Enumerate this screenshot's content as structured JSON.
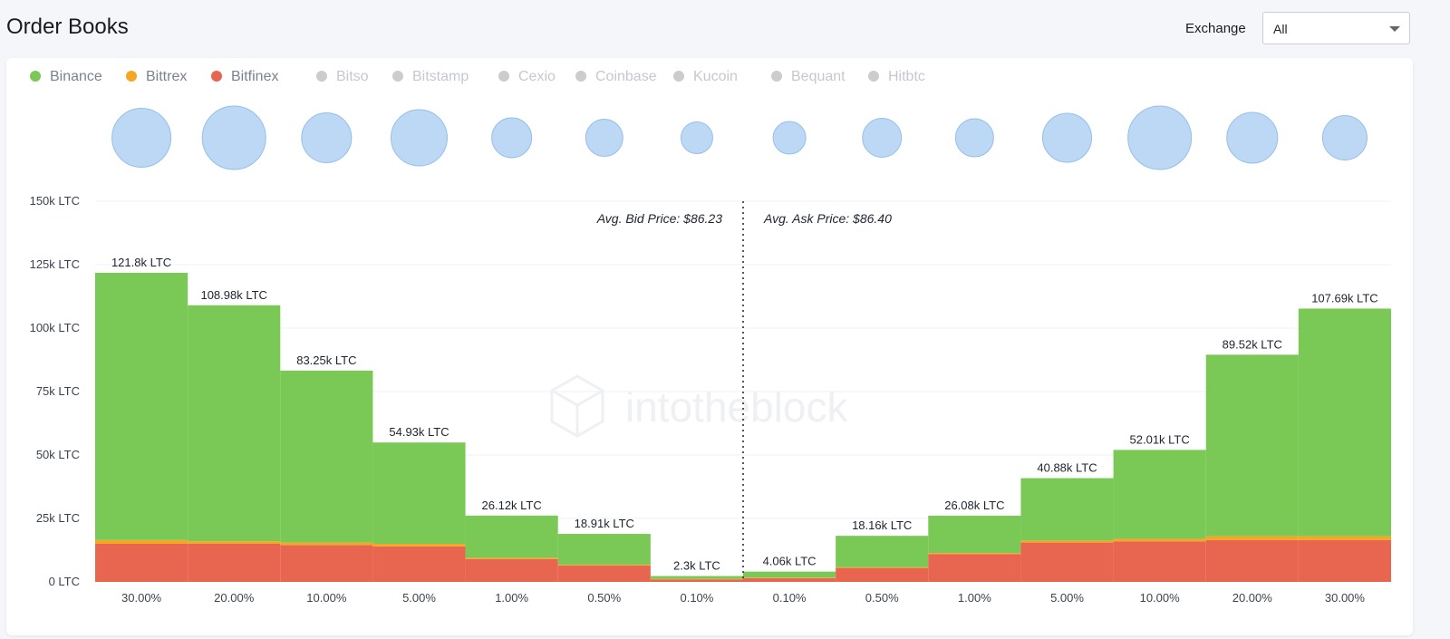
{
  "header": {
    "title": "Order Books",
    "exchange_label": "Exchange",
    "exchange_value": "All"
  },
  "legend": [
    {
      "name": "Binance",
      "color": "#7ac855",
      "active": true
    },
    {
      "name": "Bittrex",
      "color": "#f5a623",
      "active": true
    },
    {
      "name": "Bitfinex",
      "color": "#e8654f",
      "active": true
    },
    {
      "name": "Bitso",
      "color": "#cccccc",
      "active": false
    },
    {
      "name": "Bitstamp",
      "color": "#cccccc",
      "active": false
    },
    {
      "name": "Cexio",
      "color": "#cccccc",
      "active": false
    },
    {
      "name": "Coinbase",
      "color": "#cccccc",
      "active": false
    },
    {
      "name": "Kucoin",
      "color": "#cccccc",
      "active": false
    },
    {
      "name": "Bequant",
      "color": "#cccccc",
      "active": false
    },
    {
      "name": "Hitbtc",
      "color": "#cccccc",
      "active": false
    }
  ],
  "chart_data": {
    "type": "bar",
    "stacked": true,
    "categories": [
      "30.00%",
      "20.00%",
      "10.00%",
      "5.00%",
      "1.00%",
      "0.50%",
      "0.10%",
      "0.10%",
      "0.50%",
      "1.00%",
      "5.00%",
      "10.00%",
      "20.00%",
      "30.00%"
    ],
    "side": [
      "bid",
      "bid",
      "bid",
      "bid",
      "bid",
      "bid",
      "bid",
      "ask",
      "ask",
      "ask",
      "ask",
      "ask",
      "ask",
      "ask"
    ],
    "series": [
      {
        "name": "Bitfinex",
        "color": "#e8654f",
        "values": [
          15,
          15,
          14.5,
          14,
          9,
          6.5,
          1,
          1.5,
          5.5,
          11,
          15.5,
          16,
          16.5,
          16.5
        ]
      },
      {
        "name": "Bittrex",
        "color": "#f5a623",
        "values": [
          1.5,
          1,
          1,
          1,
          0.5,
          0.3,
          0.2,
          0.2,
          0.3,
          0.4,
          0.8,
          1,
          1.5,
          1.5
        ]
      },
      {
        "name": "Binance",
        "color": "#7ac855",
        "values": [
          105.3,
          92.98,
          67.75,
          39.93,
          16.62,
          12.11,
          1.1,
          2.36,
          12.36,
          14.68,
          24.58,
          35.01,
          71.52,
          89.69
        ]
      }
    ],
    "totals": [
      121.8,
      108.98,
      83.25,
      54.93,
      26.12,
      18.91,
      2.3,
      4.06,
      18.16,
      26.08,
      40.88,
      52.01,
      89.52,
      107.69
    ],
    "total_labels": [
      "121.8k LTC",
      "108.98k LTC",
      "83.25k LTC",
      "54.93k LTC",
      "26.12k LTC",
      "18.91k LTC",
      "2.3k LTC",
      "4.06k LTC",
      "18.16k LTC",
      "26.08k LTC",
      "40.88k LTC",
      "52.01k LTC",
      "89.52k LTC",
      "107.69k LTC"
    ],
    "bubble_sizes": [
      65,
      70,
      55,
      62,
      44,
      41,
      35,
      36,
      43,
      42,
      54,
      70,
      56,
      49
    ],
    "bubble_color": "#bcd8f5",
    "y_ticks": [
      0,
      25,
      50,
      75,
      100,
      125,
      150
    ],
    "y_tick_labels": [
      "0 LTC",
      "25k LTC",
      "50k LTC",
      "75k LTC",
      "100k LTC",
      "125k LTC",
      "150k LTC"
    ],
    "ylim": [
      0,
      150
    ],
    "grid": true,
    "annotations": {
      "bid": "Avg. Bid Price: $86.23",
      "ask": "Avg. Ask Price: $86.40"
    },
    "watermark": "intotheblock"
  }
}
